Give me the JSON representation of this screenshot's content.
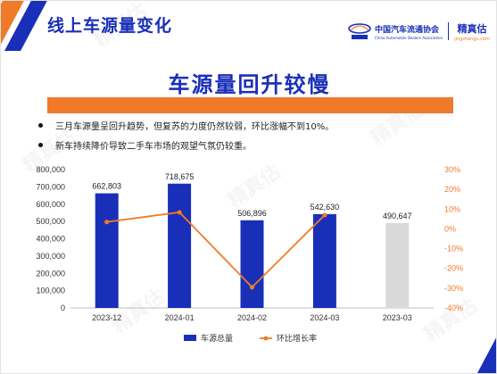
{
  "header": {
    "title": "线上车源量变化"
  },
  "logo": {
    "association_cn": "中国汽车流通协会",
    "association_en": "China Automobile Dealers Association",
    "brand_cn": "精真估",
    "brand_url": "jingzhengu.com"
  },
  "slide": {
    "main_title": "车源量回升较慢"
  },
  "bullets": [
    "三月车源量呈回升趋势，但复苏的力度仍然较弱，环比涨幅不到10%。",
    "新车持续降价导致二手车市场的观望气氛仍较重。"
  ],
  "watermark_text": "精真估",
  "colors": {
    "bar": "#1a2fb8",
    "bar_forecast": "#d9d9d9",
    "line": "#f07a2a",
    "accent": "#f07a2a",
    "brand": "#1a2fb8"
  },
  "chart_data": {
    "type": "bar",
    "categories": [
      "2023-12",
      "2024-01",
      "2024-02",
      "2024-03",
      "2023-03"
    ],
    "series": [
      {
        "name": "车源总量",
        "type": "bar",
        "axis": "left",
        "values": [
          662803,
          718675,
          506896,
          542630,
          490647
        ],
        "labels": [
          "662,803",
          "718,675",
          "506,896",
          "542,630",
          "490,647"
        ]
      },
      {
        "name": "环比增长率",
        "type": "line",
        "axis": "right",
        "values": [
          3.5,
          8.4,
          -29.5,
          7.0,
          null
        ]
      }
    ],
    "left_axis": {
      "min": 0,
      "max": 800000,
      "step": 100000,
      "tick_labels": [
        "0",
        "100,000",
        "200,000",
        "300,000",
        "400,000",
        "500,000",
        "600,000",
        "700,000",
        "800,000"
      ]
    },
    "right_axis": {
      "min": -40,
      "max": 30,
      "step": 10,
      "tick_labels": [
        "-40%",
        "-30%",
        "-20%",
        "-10%",
        "0%",
        "10%",
        "20%",
        "30%"
      ]
    },
    "legend": {
      "position": "bottom"
    },
    "grid": false
  }
}
